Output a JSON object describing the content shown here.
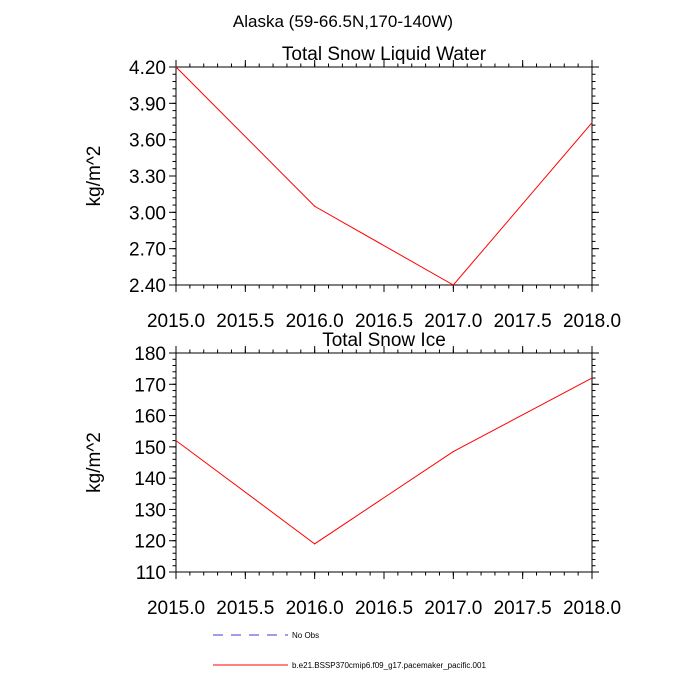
{
  "figure": {
    "suptitle": "Alaska (59-66.5N,170-140W)"
  },
  "chart_data": [
    {
      "type": "line",
      "title": "Total Snow Liquid Water",
      "xlabel": "",
      "ylabel": "kg/m^2",
      "xlim": [
        2015.0,
        2018.0
      ],
      "ylim": [
        2.4,
        4.2
      ],
      "xticks": [
        2015.0,
        2015.5,
        2016.0,
        2016.5,
        2017.0,
        2017.5,
        2018.0
      ],
      "xtick_labels": [
        "2015.0",
        "2015.5",
        "2016.0",
        "2016.5",
        "2017.0",
        "2017.5",
        "2018.0"
      ],
      "yticks": [
        2.4,
        2.7,
        3.0,
        3.3,
        3.6,
        3.9,
        4.2
      ],
      "ytick_labels": [
        "2.40",
        "2.70",
        "3.00",
        "3.30",
        "3.60",
        "3.90",
        "4.20"
      ],
      "grid": false,
      "series": [
        {
          "name": "b.e21.BSSP370cmip6.f09_g17.pacemaker_pacific.001",
          "color": "#ff0000",
          "x": [
            2015.0,
            2016.0,
            2017.0,
            2018.0
          ],
          "y": [
            4.2,
            3.05,
            2.4,
            3.74
          ]
        }
      ]
    },
    {
      "type": "line",
      "title": "Total Snow Ice",
      "xlabel": "",
      "ylabel": "kg/m^2",
      "xlim": [
        2015.0,
        2018.0
      ],
      "ylim": [
        110,
        180
      ],
      "xticks": [
        2015.0,
        2015.5,
        2016.0,
        2016.5,
        2017.0,
        2017.5,
        2018.0
      ],
      "xtick_labels": [
        "2015.0",
        "2015.5",
        "2016.0",
        "2016.5",
        "2017.0",
        "2017.5",
        "2018.0"
      ],
      "yticks": [
        110,
        120,
        130,
        140,
        150,
        160,
        170,
        180
      ],
      "ytick_labels": [
        "110",
        "120",
        "130",
        "140",
        "150",
        "160",
        "170",
        "180"
      ],
      "grid": false,
      "series": [
        {
          "name": "b.e21.BSSP370cmip6.f09_g17.pacemaker_pacific.001",
          "color": "#ff0000",
          "x": [
            2015.0,
            2016.0,
            2017.0,
            2018.0
          ],
          "y": [
            152,
            119,
            148.5,
            172
          ]
        }
      ]
    }
  ],
  "legend": {
    "placement": "bottom-center",
    "entries": [
      {
        "label": "No Obs",
        "color": "#3b3bd0",
        "style": "dashed"
      },
      {
        "label": "b.e21.BSSP370cmip6.f09_g17.pacemaker_pacific.001",
        "color": "#ff0000",
        "style": "solid"
      }
    ]
  }
}
